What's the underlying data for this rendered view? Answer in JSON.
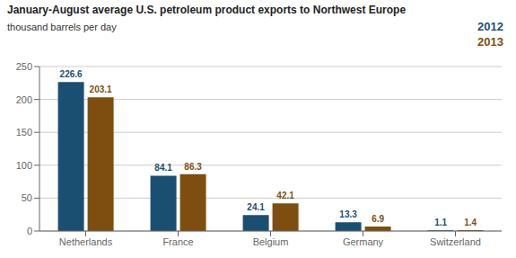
{
  "chart_data": {
    "type": "bar",
    "title": "January-August average U.S. petroleum product exports to Northwest Europe",
    "subtitle": "thousand barrels per day",
    "categories": [
      "Netherlands",
      "France",
      "Belgium",
      "Germany",
      "Switzerland"
    ],
    "series": [
      {
        "name": "2012",
        "color": "#1b4f72",
        "values": [
          226.6,
          84.1,
          24.1,
          13.3,
          1.1
        ]
      },
      {
        "name": "2013",
        "color": "#7d4e10",
        "values": [
          203.1,
          86.3,
          42.1,
          6.9,
          1.4
        ]
      }
    ],
    "ylim": [
      0,
      250
    ],
    "yticks": [
      0,
      50,
      100,
      150,
      200,
      250
    ],
    "grid": true,
    "legend": "upper right",
    "data_labels": true
  }
}
